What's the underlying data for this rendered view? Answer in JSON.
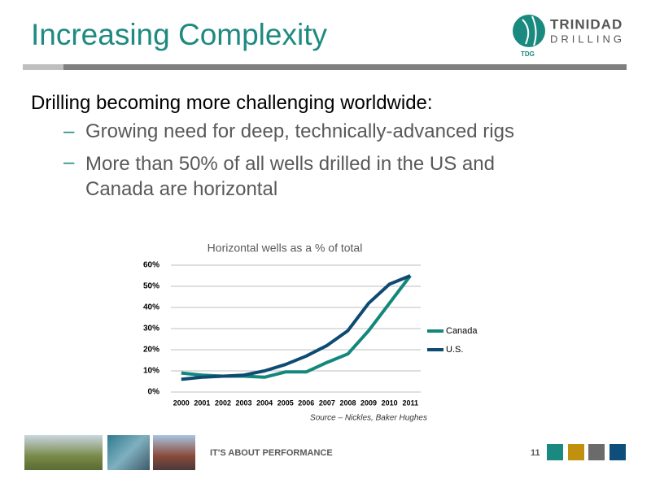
{
  "header": {
    "title": "Increasing Complexity",
    "logo": {
      "name": "TRINIDAD",
      "subname": "DRILLING",
      "tag": "TDG"
    }
  },
  "bullets": {
    "main": "Drilling becoming more challenging worldwide:",
    "subs": [
      "Growing need for deep, technically-advanced rigs",
      "More than 50% of all wells drilled in the US and Canada are horizontal"
    ]
  },
  "chart_data": {
    "type": "line",
    "title": "Horizontal wells as a % of total",
    "categories": [
      "2000",
      "2001",
      "2002",
      "2003",
      "2004",
      "2005",
      "2006",
      "2007",
      "2008",
      "2009",
      "2010",
      "2011"
    ],
    "series": [
      {
        "name": "Canada",
        "color": "#13877c",
        "values": [
          9,
          8,
          7.5,
          7.5,
          7,
          9.5,
          9.5,
          14,
          18,
          29,
          42,
          55
        ]
      },
      {
        "name": "U.S.",
        "color": "#0e4a72",
        "values": [
          6,
          7,
          7.5,
          8,
          10,
          13,
          17,
          22,
          29,
          42,
          51,
          55
        ]
      }
    ],
    "ylim": [
      0,
      60
    ],
    "yticks": [
      {
        "value": 0,
        "label": "0%"
      },
      {
        "value": 10,
        "label": "10%"
      },
      {
        "value": 20,
        "label": "20%"
      },
      {
        "value": 30,
        "label": "30%"
      },
      {
        "value": 40,
        "label": "40%"
      },
      {
        "value": 50,
        "label": "50%"
      },
      {
        "value": 60,
        "label": "60%"
      }
    ],
    "grid": true,
    "legend": "right",
    "source": "Source – Nickles, Baker Hughes"
  },
  "footer": {
    "tagline": "IT'S ABOUT PERFORMANCE",
    "page": "11"
  }
}
